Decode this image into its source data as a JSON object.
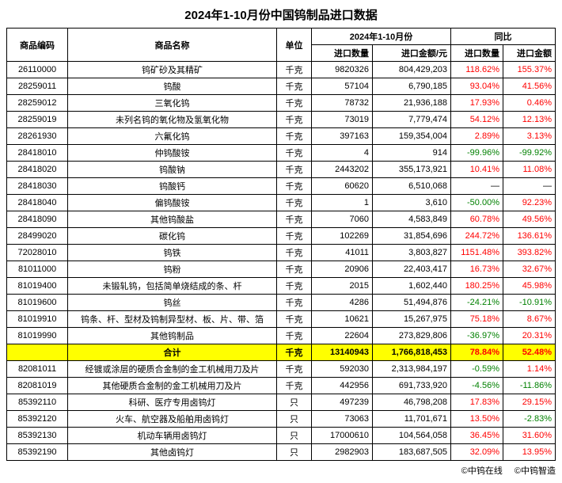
{
  "title": "2024年1-10月份中国钨制品进口数据",
  "headers": {
    "code": "商品编码",
    "name": "商品名称",
    "unit": "单位",
    "period": "2024年1-10月份",
    "yoy": "同比",
    "qty": "进口数量",
    "amt": "进口金额/元",
    "yoy_qty": "进口数量",
    "yoy_amt": "进口金额"
  },
  "rows": [
    {
      "code": "26110000",
      "name": "钨矿砂及其精矿",
      "unit": "千克",
      "qty": "9820326",
      "amt": "804,429,203",
      "yq": "118.62%",
      "ya": "155.37%",
      "yq_c": "red",
      "ya_c": "red"
    },
    {
      "code": "28259011",
      "name": "钨酸",
      "unit": "千克",
      "qty": "57104",
      "amt": "6,790,185",
      "yq": "93.04%",
      "ya": "41.56%",
      "yq_c": "red",
      "ya_c": "red"
    },
    {
      "code": "28259012",
      "name": "三氧化钨",
      "unit": "千克",
      "qty": "78732",
      "amt": "21,936,188",
      "yq": "17.93%",
      "ya": "0.46%",
      "yq_c": "red",
      "ya_c": "red"
    },
    {
      "code": "28259019",
      "name": "未列名钨的氧化物及氢氧化物",
      "unit": "千克",
      "qty": "73019",
      "amt": "7,779,474",
      "yq": "54.12%",
      "ya": "12.13%",
      "yq_c": "red",
      "ya_c": "red"
    },
    {
      "code": "28261930",
      "name": "六氟化钨",
      "unit": "千克",
      "qty": "397163",
      "amt": "159,354,004",
      "yq": "2.89%",
      "ya": "3.13%",
      "yq_c": "red",
      "ya_c": "red"
    },
    {
      "code": "28418010",
      "name": "仲钨酸铵",
      "unit": "千克",
      "qty": "4",
      "amt": "914",
      "yq": "-99.96%",
      "ya": "-99.92%",
      "yq_c": "green",
      "ya_c": "green"
    },
    {
      "code": "28418020",
      "name": "钨酸钠",
      "unit": "千克",
      "qty": "2443202",
      "amt": "355,173,921",
      "yq": "10.41%",
      "ya": "11.08%",
      "yq_c": "red",
      "ya_c": "red"
    },
    {
      "code": "28418030",
      "name": "钨酸钙",
      "unit": "千克",
      "qty": "60620",
      "amt": "6,510,068",
      "yq": "—",
      "ya": "—",
      "yq_c": "",
      "ya_c": ""
    },
    {
      "code": "28418040",
      "name": "偏钨酸铵",
      "unit": "千克",
      "qty": "1",
      "amt": "3,610",
      "yq": "-50.00%",
      "ya": "92.23%",
      "yq_c": "green",
      "ya_c": "red"
    },
    {
      "code": "28418090",
      "name": "其他钨酸盐",
      "unit": "千克",
      "qty": "7060",
      "amt": "4,583,849",
      "yq": "60.78%",
      "ya": "49.56%",
      "yq_c": "red",
      "ya_c": "red"
    },
    {
      "code": "28499020",
      "name": "碳化钨",
      "unit": "千克",
      "qty": "102269",
      "amt": "31,854,696",
      "yq": "244.72%",
      "ya": "136.61%",
      "yq_c": "red",
      "ya_c": "red"
    },
    {
      "code": "72028010",
      "name": "钨铁",
      "unit": "千克",
      "qty": "41011",
      "amt": "3,803,827",
      "yq": "1151.48%",
      "ya": "393.82%",
      "yq_c": "red",
      "ya_c": "red"
    },
    {
      "code": "81011000",
      "name": "钨粉",
      "unit": "千克",
      "qty": "20906",
      "amt": "22,403,417",
      "yq": "16.73%",
      "ya": "32.67%",
      "yq_c": "red",
      "ya_c": "red"
    },
    {
      "code": "81019400",
      "name": "未锻轧钨，包括简单烧结成的条、杆",
      "unit": "千克",
      "qty": "2015",
      "amt": "1,602,440",
      "yq": "180.25%",
      "ya": "45.98%",
      "yq_c": "red",
      "ya_c": "red"
    },
    {
      "code": "81019600",
      "name": "钨丝",
      "unit": "千克",
      "qty": "4286",
      "amt": "51,494,876",
      "yq": "-24.21%",
      "ya": "-10.91%",
      "yq_c": "green",
      "ya_c": "green"
    },
    {
      "code": "81019910",
      "name": "钨条、杆、型材及钨制异型材、板、片、带、箔",
      "unit": "千克",
      "qty": "10621",
      "amt": "15,267,975",
      "yq": "75.18%",
      "ya": "8.67%",
      "yq_c": "red",
      "ya_c": "red"
    },
    {
      "code": "81019990",
      "name": "其他钨制品",
      "unit": "千克",
      "qty": "22604",
      "amt": "273,829,806",
      "yq": "-36.97%",
      "ya": "20.31%",
      "yq_c": "green",
      "ya_c": "red"
    }
  ],
  "total": {
    "code": "",
    "name": "合计",
    "unit": "千克",
    "qty": "13140943",
    "amt": "1,766,818,453",
    "yq": "78.84%",
    "ya": "52.48%",
    "yq_c": "red",
    "ya_c": "red"
  },
  "rows2": [
    {
      "code": "82081011",
      "name": "经镀或涂层的硬质合金制的金工机械用刀及片",
      "unit": "千克",
      "qty": "592030",
      "amt": "2,313,984,197",
      "yq": "-0.59%",
      "ya": "1.14%",
      "yq_c": "green",
      "ya_c": "red"
    },
    {
      "code": "82081019",
      "name": "其他硬质合金制的金工机械用刀及片",
      "unit": "千克",
      "qty": "442956",
      "amt": "691,733,920",
      "yq": "-4.56%",
      "ya": "-11.86%",
      "yq_c": "green",
      "ya_c": "green"
    },
    {
      "code": "85392110",
      "name": "科研、医疗专用卤钨灯",
      "unit": "只",
      "qty": "497239",
      "amt": "46,798,208",
      "yq": "17.83%",
      "ya": "29.15%",
      "yq_c": "red",
      "ya_c": "red"
    },
    {
      "code": "85392120",
      "name": "火车、航空器及船舶用卤钨灯",
      "unit": "只",
      "qty": "73063",
      "amt": "11,701,671",
      "yq": "13.50%",
      "ya": "-2.83%",
      "yq_c": "red",
      "ya_c": "green"
    },
    {
      "code": "85392130",
      "name": "机动车辆用卤钨灯",
      "unit": "只",
      "qty": "17000610",
      "amt": "104,564,058",
      "yq": "36.45%",
      "ya": "31.60%",
      "yq_c": "red",
      "ya_c": "red"
    },
    {
      "code": "85392190",
      "name": "其他卤钨灯",
      "unit": "只",
      "qty": "2982903",
      "amt": "183,687,505",
      "yq": "32.09%",
      "ya": "13.95%",
      "yq_c": "red",
      "ya_c": "red"
    }
  ],
  "footer": {
    "left": "©中钨在线",
    "right": "©中钨智造"
  }
}
